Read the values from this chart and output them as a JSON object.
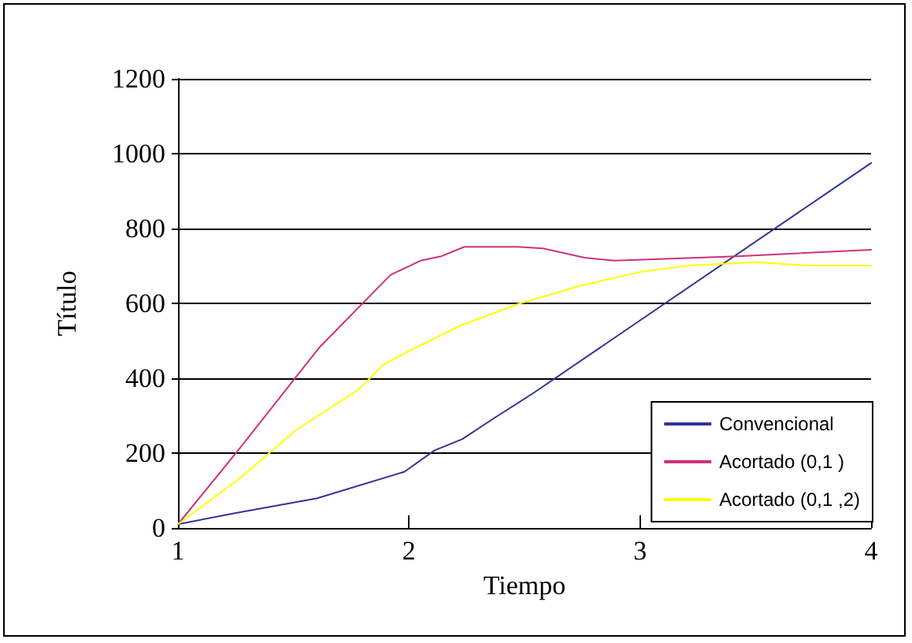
{
  "chart_data": {
    "type": "line",
    "xlabel": "Tiempo",
    "ylabel": "Título",
    "xlim": [
      1,
      4
    ],
    "xticks": [
      1,
      2,
      3,
      4
    ],
    "ylim": [
      0,
      1200
    ],
    "yticks": [
      0,
      200,
      400,
      600,
      800,
      1000,
      1200
    ],
    "grid": "y",
    "legend": "bottom right",
    "marker": "none",
    "line_style": "solid",
    "series": [
      {
        "name": "Convencional",
        "color": "#333399",
        "x": [
          1,
          1.26,
          1.6,
          1.98,
          2.11,
          2.23,
          2.36,
          2.54,
          4
        ],
        "values": [
          10,
          41,
          79,
          150,
          207,
          237,
          290,
          361,
          975
        ]
      },
      {
        "name": "Acortado (0,1 )",
        "color": "#cc3377",
        "x": [
          1,
          1.26,
          1.61,
          1.92,
          2.05,
          2.14,
          2.24,
          2.47,
          2.58,
          2.76,
          2.89,
          3.42,
          4
        ],
        "values": [
          10,
          207,
          481,
          676,
          714,
          726,
          751,
          751,
          747,
          722,
          714,
          726,
          743
        ]
      },
      {
        "name": "Acortado (0,1 ,2)",
        "color": "#ffff00",
        "x": [
          1,
          1.26,
          1.51,
          1.78,
          1.89,
          2.0,
          2.22,
          2.47,
          2.74,
          3.01,
          3.21,
          3.5,
          3.73,
          4
        ],
        "values": [
          10,
          129,
          261,
          369,
          436,
          473,
          540,
          598,
          647,
          685,
          701,
          710,
          701,
          701
        ]
      }
    ]
  }
}
